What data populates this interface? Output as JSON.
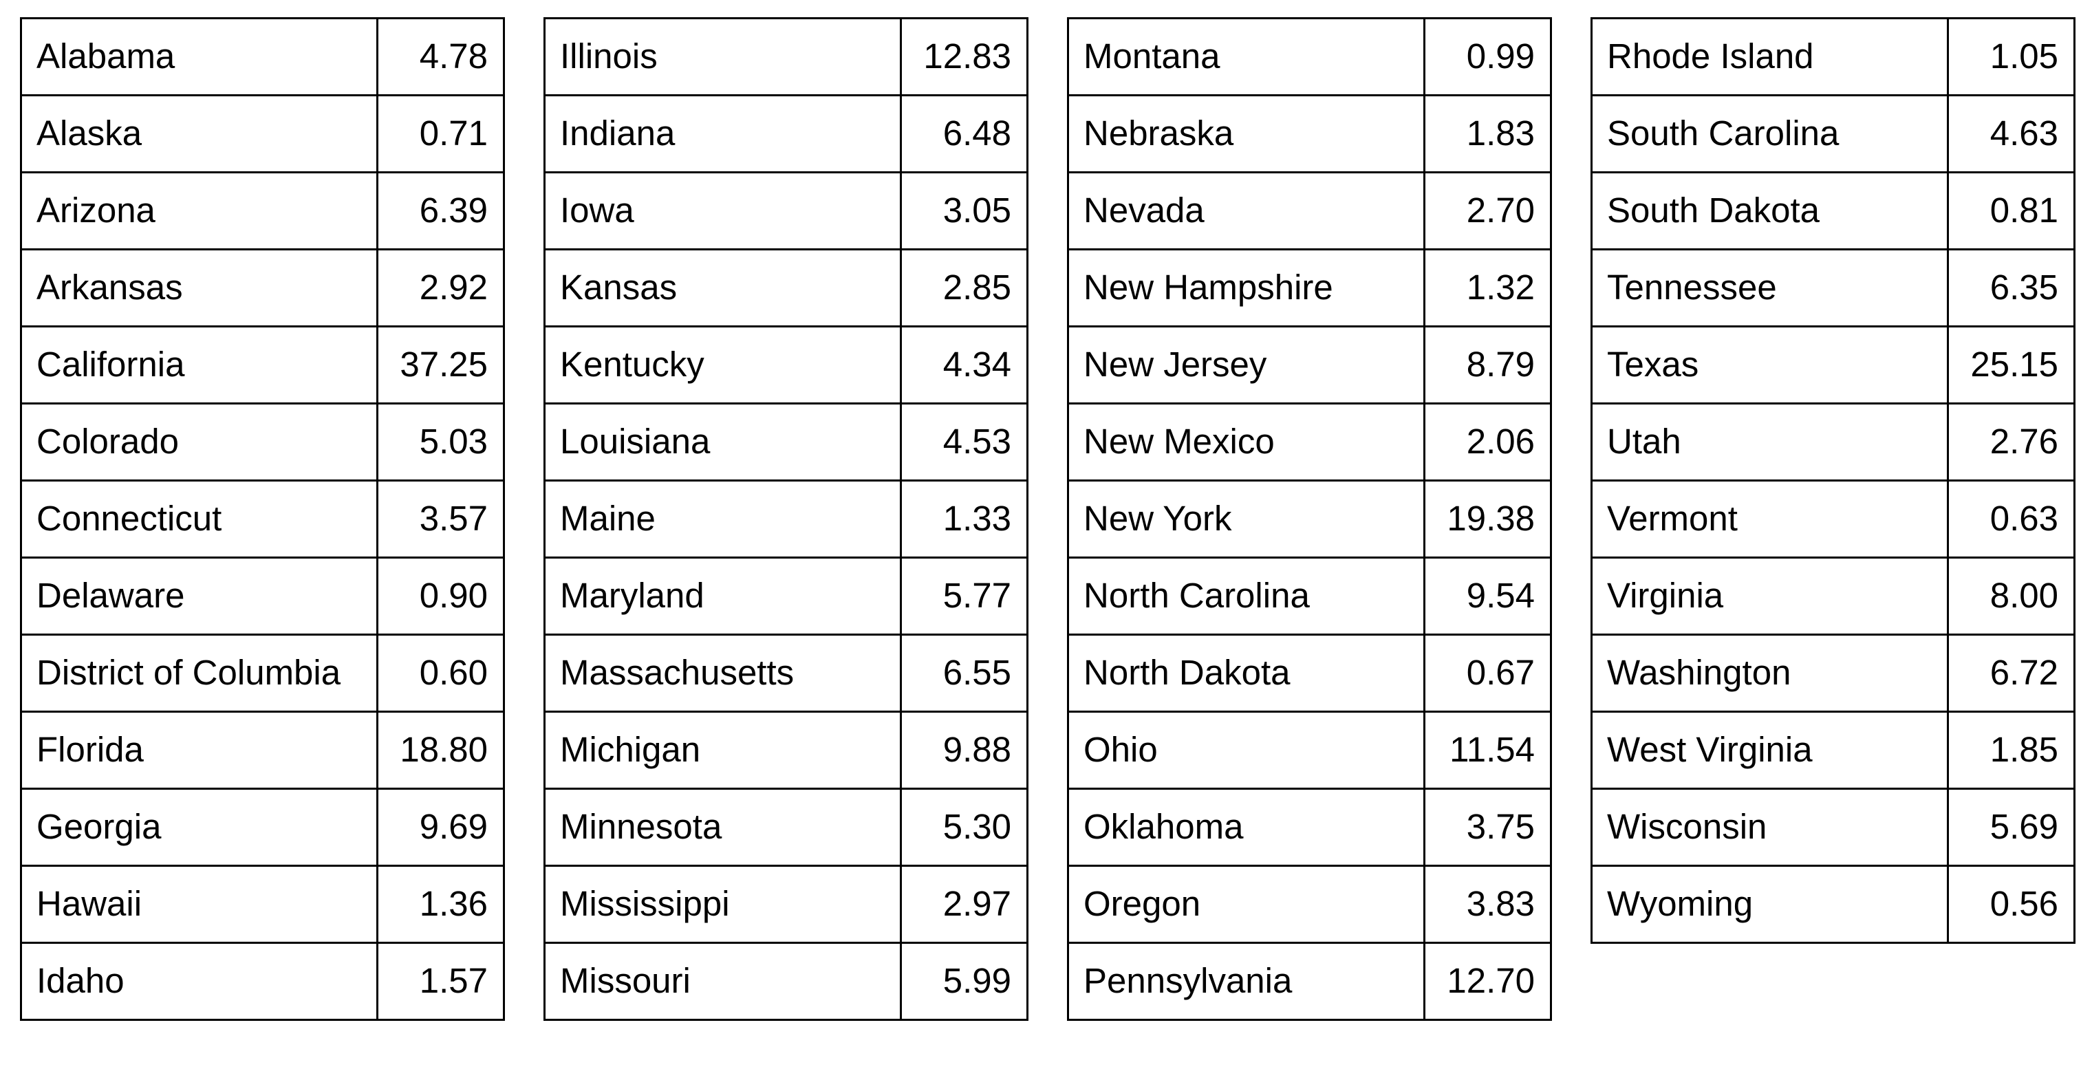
{
  "chart_data": {
    "type": "table",
    "layout": "four side-by-side two-column tables, black 3px grid borders, white background, no header row",
    "text_color": "#000000",
    "border_color": "#000000",
    "background_color": "#ffffff",
    "tables": [
      {
        "rows": [
          {
            "state": "Alabama",
            "value": "4.78"
          },
          {
            "state": "Alaska",
            "value": "0.71"
          },
          {
            "state": "Arizona",
            "value": "6.39"
          },
          {
            "state": "Arkansas",
            "value": "2.92"
          },
          {
            "state": "California",
            "value": "37.25"
          },
          {
            "state": "Colorado",
            "value": "5.03"
          },
          {
            "state": "Connecticut",
            "value": "3.57"
          },
          {
            "state": "Delaware",
            "value": "0.90"
          },
          {
            "state": "District of Columbia",
            "value": "0.60"
          },
          {
            "state": "Florida",
            "value": "18.80"
          },
          {
            "state": "Georgia",
            "value": "9.69"
          },
          {
            "state": "Hawaii",
            "value": "1.36"
          },
          {
            "state": "Idaho",
            "value": "1.57"
          }
        ]
      },
      {
        "rows": [
          {
            "state": "Illinois",
            "value": "12.83"
          },
          {
            "state": "Indiana",
            "value": "6.48"
          },
          {
            "state": "Iowa",
            "value": "3.05"
          },
          {
            "state": "Kansas",
            "value": "2.85"
          },
          {
            "state": "Kentucky",
            "value": "4.34"
          },
          {
            "state": "Louisiana",
            "value": "4.53"
          },
          {
            "state": "Maine",
            "value": "1.33"
          },
          {
            "state": "Maryland",
            "value": "5.77"
          },
          {
            "state": "Massachusetts",
            "value": "6.55"
          },
          {
            "state": "Michigan",
            "value": "9.88"
          },
          {
            "state": "Minnesota",
            "value": "5.30"
          },
          {
            "state": "Mississippi",
            "value": "2.97"
          },
          {
            "state": "Missouri",
            "value": "5.99"
          }
        ]
      },
      {
        "rows": [
          {
            "state": "Montana",
            "value": "0.99"
          },
          {
            "state": "Nebraska",
            "value": "1.83"
          },
          {
            "state": "Nevada",
            "value": "2.70"
          },
          {
            "state": "New Hampshire",
            "value": "1.32"
          },
          {
            "state": "New Jersey",
            "value": "8.79"
          },
          {
            "state": "New Mexico",
            "value": "2.06"
          },
          {
            "state": "New York",
            "value": "19.38"
          },
          {
            "state": "North Carolina",
            "value": "9.54"
          },
          {
            "state": "North Dakota",
            "value": "0.67"
          },
          {
            "state": "Ohio",
            "value": "11.54"
          },
          {
            "state": "Oklahoma",
            "value": "3.75"
          },
          {
            "state": "Oregon",
            "value": "3.83"
          },
          {
            "state": "Pennsylvania",
            "value": "12.70"
          }
        ]
      },
      {
        "rows": [
          {
            "state": "Rhode Island",
            "value": "1.05"
          },
          {
            "state": "South Carolina",
            "value": "4.63"
          },
          {
            "state": "South Dakota",
            "value": "0.81"
          },
          {
            "state": "Tennessee",
            "value": "6.35"
          },
          {
            "state": "Texas",
            "value": "25.15"
          },
          {
            "state": "Utah",
            "value": "2.76"
          },
          {
            "state": "Vermont",
            "value": "0.63"
          },
          {
            "state": "Virginia",
            "value": "8.00"
          },
          {
            "state": "Washington",
            "value": "6.72"
          },
          {
            "state": "West Virginia",
            "value": "1.85"
          },
          {
            "state": "Wisconsin",
            "value": "5.69"
          },
          {
            "state": "Wyoming",
            "value": "0.56"
          }
        ]
      }
    ]
  }
}
